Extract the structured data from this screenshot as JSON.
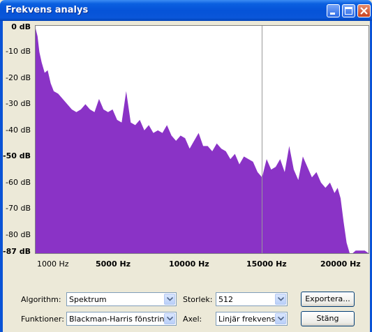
{
  "window": {
    "title": "Frekvens analys",
    "icons": [
      "minimize-icon",
      "maximize-icon",
      "close-icon"
    ]
  },
  "colors": {
    "spectrum_fill": "#8a33c6",
    "title_bar": "#0553d8",
    "cursor_line": "#999999"
  },
  "chart_data": {
    "type": "area",
    "y_tick_labels": [
      "0 dB",
      "-10 dB",
      "-20 dB",
      "-30 dB",
      "-40 dB",
      "-50 dB",
      "-60 dB",
      "-70 dB",
      "-80 dB",
      "-87 dB"
    ],
    "x_tick_labels": [
      "1000 Hz",
      "5000 Hz",
      "10000 Hz",
      "15000 Hz",
      "20000 Hz"
    ],
    "ylim": [
      -87,
      0
    ],
    "xlim": [
      0,
      22050
    ],
    "cursor_x": 15000,
    "x": [
      0,
      130,
      250,
      400,
      600,
      800,
      1000,
      1200,
      1500,
      1800,
      2100,
      2400,
      2700,
      3000,
      3300,
      3600,
      3900,
      4200,
      4500,
      4800,
      5100,
      5400,
      5700,
      6000,
      6300,
      6600,
      6900,
      7200,
      7500,
      7800,
      8100,
      8400,
      8700,
      9000,
      9300,
      9600,
      9900,
      10200,
      10500,
      10800,
      11100,
      11400,
      11700,
      12000,
      12300,
      12600,
      12900,
      13200,
      13500,
      13800,
      14100,
      14400,
      14700,
      15000,
      15300,
      15600,
      15900,
      16200,
      16500,
      16800,
      17100,
      17400,
      17700,
      18000,
      18300,
      18600,
      18900,
      19200,
      19500,
      19800,
      20000,
      20200,
      20400,
      20600,
      20800,
      21000,
      21200,
      21400,
      21600,
      21800,
      22050
    ],
    "values": [
      -1,
      -4,
      -10,
      -14,
      -18,
      -17,
      -22,
      -25,
      -26,
      -28,
      -30,
      -32,
      -33,
      -32,
      -30,
      -32,
      -33,
      -28,
      -32,
      -33,
      -32,
      -36,
      -37,
      -25,
      -37,
      -38,
      -36,
      -40,
      -38,
      -41,
      -40,
      -41,
      -38,
      -42,
      -44,
      -42,
      -43,
      -47,
      -44,
      -41,
      -46,
      -46,
      -48,
      -45,
      -47,
      -48,
      -51,
      -49,
      -53,
      -50,
      -51,
      -52,
      -56,
      -58,
      -51,
      -55,
      -54,
      -51,
      -56,
      -46,
      -55,
      -59,
      -50,
      -54,
      -58,
      -56,
      -60,
      -62,
      -60,
      -64,
      -62,
      -66,
      -75,
      -83,
      -87,
      -87,
      -86,
      -86,
      -86,
      -86,
      -87
    ]
  },
  "controls": {
    "algorithm_label": "Algorithm:",
    "algorithm_value": "Spektrum",
    "size_label": "Storlek:",
    "size_value": "512",
    "functions_label": "Funktioner:",
    "functions_value": "Blackman-Harris fönstring",
    "axis_label": "Axel:",
    "axis_value": "Linjär frekvens",
    "export_button": "Exportera...",
    "close_button": "Stäng"
  }
}
